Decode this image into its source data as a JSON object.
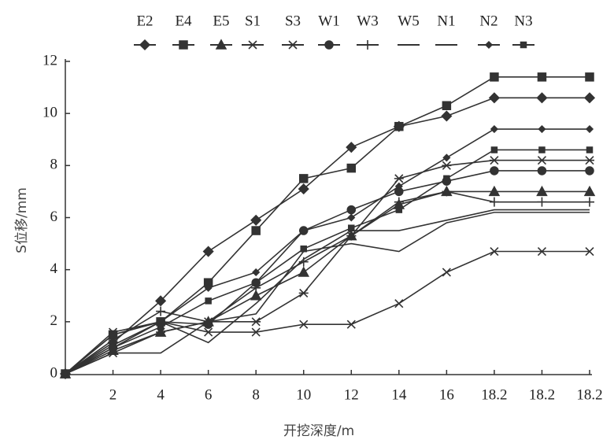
{
  "chart_data": {
    "type": "line",
    "x_label": "开挖深度/m",
    "y_label": "S位移/mm",
    "categories": [
      null,
      "2",
      "4",
      "6",
      "8",
      "10",
      "12",
      "14",
      "16",
      "18.2",
      "18.2",
      "18.2"
    ],
    "ylim": [
      0,
      12
    ],
    "yticks": [
      0,
      2,
      4,
      6,
      8,
      10,
      12
    ],
    "series": [
      {
        "name": "E2",
        "color": "#333",
        "marker": "diamond",
        "values": [
          0,
          1.2,
          2.8,
          4.7,
          5.9,
          7.1,
          8.7,
          9.5,
          9.9,
          10.6,
          10.6,
          10.6
        ]
      },
      {
        "name": "E4",
        "color": "#333",
        "marker": "square",
        "values": [
          0,
          1.5,
          2.0,
          3.5,
          5.5,
          7.5,
          7.9,
          9.5,
          10.3,
          11.4,
          11.4,
          11.4
        ]
      },
      {
        "name": "E5",
        "color": "#333",
        "marker": "triangle",
        "values": [
          0,
          0.9,
          1.6,
          2.0,
          3.0,
          3.9,
          5.3,
          6.5,
          7.0,
          7.0,
          7.0,
          7.0
        ]
      },
      {
        "name": "S1",
        "color": "#333",
        "marker": "asterisk",
        "values": [
          0,
          0.8,
          1.6,
          2.0,
          2.0,
          3.1,
          5.3,
          7.5,
          8.0,
          8.2,
          8.2,
          8.2
        ]
      },
      {
        "name": "S3",
        "color": "#333",
        "marker": "x",
        "values": [
          0,
          1.6,
          2.0,
          1.6,
          1.6,
          1.9,
          1.9,
          2.7,
          3.9,
          4.7,
          4.7,
          4.7
        ]
      },
      {
        "name": "W1",
        "color": "#333",
        "marker": "circle",
        "values": [
          0,
          1.0,
          2.0,
          1.9,
          3.5,
          5.5,
          6.3,
          7.0,
          7.4,
          7.8,
          7.8,
          7.8
        ]
      },
      {
        "name": "W3",
        "color": "#333",
        "marker": "plus",
        "values": [
          0,
          1.3,
          2.4,
          2.0,
          3.3,
          4.3,
          5.3,
          6.6,
          7.0,
          6.6,
          6.6,
          6.6
        ]
      },
      {
        "name": "W5",
        "color": "#333",
        "marker": "none",
        "values": [
          0,
          1.1,
          2.0,
          1.2,
          2.7,
          4.4,
          5.5,
          5.5,
          5.9,
          6.3,
          6.3,
          6.3
        ]
      },
      {
        "name": "N1",
        "color": "#333",
        "marker": "none",
        "values": [
          0,
          0.8,
          0.8,
          2.0,
          2.3,
          4.7,
          5.0,
          4.7,
          5.8,
          6.2,
          6.2,
          6.2
        ]
      },
      {
        "name": "N2",
        "color": "#333",
        "marker": "small-diamond",
        "values": [
          0,
          1.5,
          2.0,
          3.3,
          3.9,
          5.5,
          6.0,
          7.2,
          8.3,
          9.4,
          9.4,
          9.4
        ]
      },
      {
        "name": "N3",
        "color": "#333",
        "marker": "small-square",
        "values": [
          0,
          1.0,
          1.8,
          2.8,
          3.5,
          4.8,
          5.6,
          6.3,
          7.5,
          8.6,
          8.6,
          8.6
        ]
      }
    ]
  }
}
